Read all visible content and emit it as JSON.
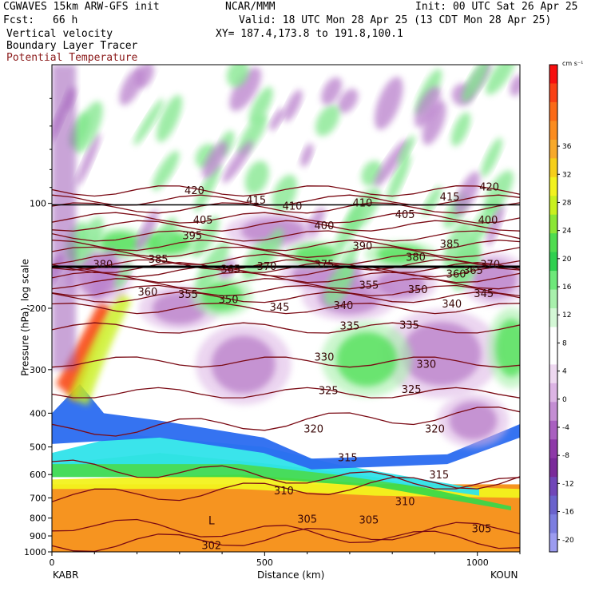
{
  "header": {
    "model": "CGWAVES 15km ARW-GFS init",
    "center": "NCAR/MMM",
    "init": "Init: 00 UTC Sat 26 Apr 25",
    "fcst_label": "Fcst:",
    "fcst_value": "66 h",
    "valid": "Valid: 18 UTC Mon 28 Apr 25 (13 CDT Mon 28 Apr 25)",
    "field1": "Vertical velocity",
    "field2": "Boundary Layer Tracer",
    "field3": "Potential Temperature",
    "xy": "XY= 187.4,173.8 to 191.8,100.1"
  },
  "colors": {
    "theta_contour": "#7a0a14",
    "field3_text": "#8b1a1a",
    "tracer_blue": "#2a6cf0",
    "tracer_cyan": "#2fe3ea",
    "tracer_green": "#33d84a",
    "tracer_yellow": "#f2f21e",
    "low_level_orange": "#f69420",
    "updraft_green": "#52e05a",
    "downdraft_purple": "#8e3aa8"
  },
  "chart_data": {
    "type": "heatmap",
    "ylabel": "Pressure (hPa), log scale",
    "xlabel": "Distance (km)",
    "y_scale": "log",
    "x_ticks": [
      "0",
      "500",
      "1000"
    ],
    "y_ticks": [
      "100",
      "200",
      "300",
      "400",
      "500",
      "600",
      "700",
      "800",
      "900",
      "1000"
    ],
    "xlim": [
      0,
      1100
    ],
    "ylim": [
      1000,
      40
    ],
    "left_station": "KABR",
    "right_station": "KOUN",
    "low_label": "L",
    "colorbar": {
      "units": "cm s⁻¹",
      "tick_labels": [
        "36",
        "32",
        "28",
        "24",
        "20",
        "16",
        "12",
        "8",
        "4",
        "0",
        "-4",
        "-8",
        "-12",
        "-16",
        "-20"
      ],
      "colors": [
        "#f70f0f",
        "#f94014",
        "#fb6a17",
        "#fb8c1f",
        "#f7a92a",
        "#f6cf1a",
        "#f2f21e",
        "#c9f01e",
        "#8be635",
        "#4fdc4f",
        "#2fd04f",
        "#6ee87a",
        "#a8f0ac",
        "#d4f8d6",
        "#ffffff",
        "#ffffff",
        "#eed8f0",
        "#dcb4e4",
        "#c48ed3",
        "#a960c0",
        "#8e3aa8",
        "#7a2a9a",
        "#7046b8",
        "#6a62cc",
        "#7c7ee0",
        "#9c9cf0"
      ]
    },
    "contour_labels": [
      {
        "text": "420",
        "x": 335,
        "p": 92
      },
      {
        "text": "420",
        "x": 1028,
        "p": 90
      },
      {
        "text": "415",
        "x": 480,
        "p": 98
      },
      {
        "text": "415",
        "x": 935,
        "p": 96
      },
      {
        "text": "410",
        "x": 565,
        "p": 102
      },
      {
        "text": "410",
        "x": 730,
        "p": 100
      },
      {
        "text": "405",
        "x": 355,
        "p": 112
      },
      {
        "text": "405",
        "x": 830,
        "p": 108
      },
      {
        "text": "400",
        "x": 640,
        "p": 116
      },
      {
        "text": "400",
        "x": 1025,
        "p": 112
      },
      {
        "text": "395",
        "x": 330,
        "p": 124
      },
      {
        "text": "390",
        "x": 730,
        "p": 133
      },
      {
        "text": "385",
        "x": 250,
        "p": 145
      },
      {
        "text": "385",
        "x": 935,
        "p": 131
      },
      {
        "text": "380",
        "x": 120,
        "p": 150
      },
      {
        "text": "380",
        "x": 855,
        "p": 143
      },
      {
        "text": "375",
        "x": 640,
        "p": 150
      },
      {
        "text": "370",
        "x": 505,
        "p": 152
      },
      {
        "text": "370",
        "x": 1030,
        "p": 150
      },
      {
        "text": "365",
        "x": 420,
        "p": 155
      },
      {
        "text": "365",
        "x": 990,
        "p": 156
      },
      {
        "text": "360",
        "x": 225,
        "p": 180
      },
      {
        "text": "360",
        "x": 950,
        "p": 160
      },
      {
        "text": "355",
        "x": 320,
        "p": 183
      },
      {
        "text": "355",
        "x": 745,
        "p": 172
      },
      {
        "text": "350",
        "x": 415,
        "p": 189
      },
      {
        "text": "350",
        "x": 860,
        "p": 177
      },
      {
        "text": "345",
        "x": 535,
        "p": 199
      },
      {
        "text": "345",
        "x": 1015,
        "p": 182
      },
      {
        "text": "340",
        "x": 685,
        "p": 197
      },
      {
        "text": "340",
        "x": 940,
        "p": 195
      },
      {
        "text": "335",
        "x": 700,
        "p": 225
      },
      {
        "text": "335",
        "x": 840,
        "p": 224
      },
      {
        "text": "330",
        "x": 640,
        "p": 277
      },
      {
        "text": "330",
        "x": 880,
        "p": 290
      },
      {
        "text": "325",
        "x": 650,
        "p": 345
      },
      {
        "text": "325",
        "x": 845,
        "p": 343
      },
      {
        "text": "320",
        "x": 615,
        "p": 445
      },
      {
        "text": "320",
        "x": 900,
        "p": 445
      },
      {
        "text": "315",
        "x": 695,
        "p": 538
      },
      {
        "text": "315",
        "x": 910,
        "p": 602
      },
      {
        "text": "310",
        "x": 545,
        "p": 670
      },
      {
        "text": "310",
        "x": 830,
        "p": 720
      },
      {
        "text": "305",
        "x": 600,
        "p": 808
      },
      {
        "text": "305",
        "x": 745,
        "p": 812
      },
      {
        "text": "305",
        "x": 1010,
        "p": 860
      },
      {
        "text": "302",
        "x": 375,
        "p": 960
      }
    ]
  }
}
